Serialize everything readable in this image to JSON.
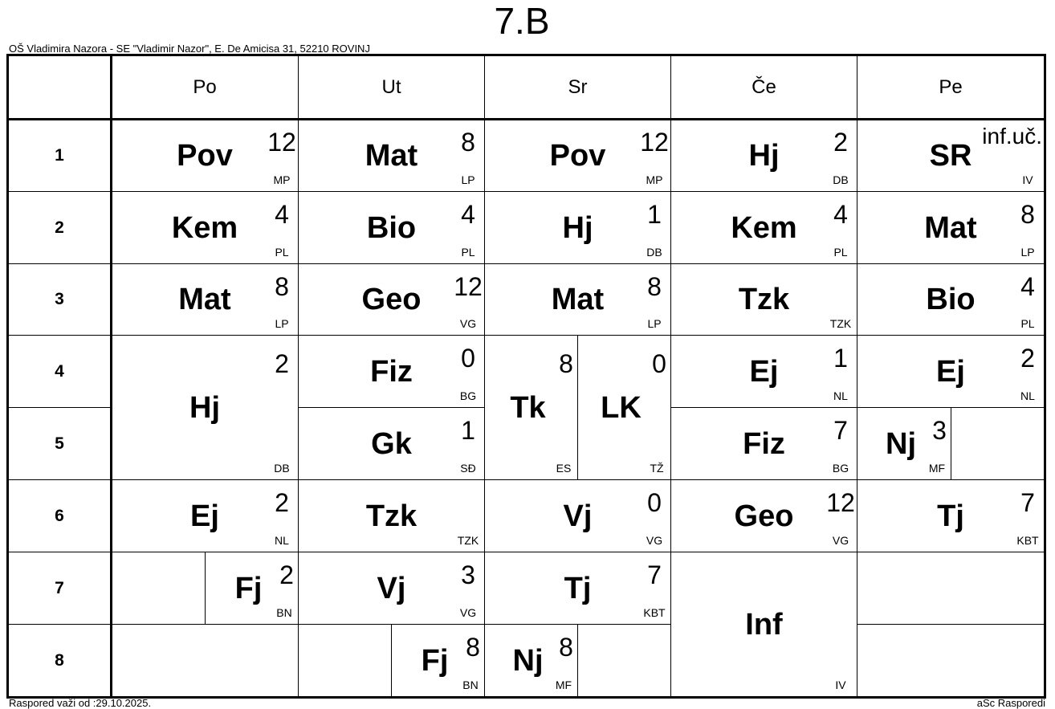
{
  "title": "7.B",
  "school": "OŠ Vladimira Nazora - SE \"Vladimir Nazor\", E. De Amicisa 31, 52210 ROVINJ",
  "valid_from": "Raspored važi od :29.10.2025.",
  "brand": "aSc Rasporedi",
  "days": [
    "Po",
    "Ut",
    "Sr",
    "Če",
    "Pe"
  ],
  "periods": [
    "1",
    "2",
    "3",
    "4",
    "5",
    "6",
    "7",
    "8"
  ],
  "cells": [
    {
      "day": "Po",
      "period": "1",
      "subject": "Pov",
      "room": "12",
      "teacher": "MP"
    },
    {
      "day": "Po",
      "period": "2",
      "subject": "Kem",
      "room": "4",
      "teacher": "PL"
    },
    {
      "day": "Po",
      "period": "3",
      "subject": "Mat",
      "room": "8",
      "teacher": "LP"
    },
    {
      "day": "Po",
      "period": "4-5",
      "subject": "Hj",
      "room": "2",
      "teacher": "DB"
    },
    {
      "day": "Po",
      "period": "6",
      "subject": "Ej",
      "room": "2",
      "teacher": "NL"
    },
    {
      "day": "Po",
      "period": "7",
      "subject": "",
      "room": "",
      "teacher": ""
    },
    {
      "day": "Po",
      "period": "7",
      "subject": "Fj",
      "room": "2",
      "teacher": "BN"
    },
    {
      "day": "Po",
      "period": "8",
      "subject": "",
      "room": "",
      "teacher": ""
    },
    {
      "day": "Ut",
      "period": "1",
      "subject": "Mat",
      "room": "8",
      "teacher": "LP"
    },
    {
      "day": "Ut",
      "period": "2",
      "subject": "Bio",
      "room": "4",
      "teacher": "PL"
    },
    {
      "day": "Ut",
      "period": "3",
      "subject": "Geo",
      "room": "12",
      "teacher": "VG"
    },
    {
      "day": "Ut",
      "period": "4",
      "subject": "Fiz",
      "room": "0",
      "teacher": "BG"
    },
    {
      "day": "Ut",
      "period": "5",
      "subject": "Gk",
      "room": "1",
      "teacher": "SĐ"
    },
    {
      "day": "Ut",
      "period": "6",
      "subject": "Tzk",
      "room": "",
      "teacher": "TZK"
    },
    {
      "day": "Ut",
      "period": "7",
      "subject": "Vj",
      "room": "3",
      "teacher": "VG"
    },
    {
      "day": "Ut",
      "period": "8",
      "subject": "",
      "room": "",
      "teacher": ""
    },
    {
      "day": "Ut",
      "period": "8",
      "subject": "Fj",
      "room": "8",
      "teacher": "BN"
    },
    {
      "day": "Sr",
      "period": "1",
      "subject": "Pov",
      "room": "12",
      "teacher": "MP"
    },
    {
      "day": "Sr",
      "period": "2",
      "subject": "Hj",
      "room": "1",
      "teacher": "DB"
    },
    {
      "day": "Sr",
      "period": "3",
      "subject": "Mat",
      "room": "8",
      "teacher": "LP"
    },
    {
      "day": "Sr",
      "period": "4-5",
      "subject": "Tk",
      "room": "8",
      "teacher": "ES"
    },
    {
      "day": "Sr",
      "period": "4-5",
      "subject": "LK",
      "room": "0",
      "teacher": "TŽ"
    },
    {
      "day": "Sr",
      "period": "6",
      "subject": "Vj",
      "room": "0",
      "teacher": "VG"
    },
    {
      "day": "Sr",
      "period": "7",
      "subject": "Tj",
      "room": "7",
      "teacher": "KBT"
    },
    {
      "day": "Sr",
      "period": "8",
      "subject": "Nj",
      "room": "8",
      "teacher": "MF"
    },
    {
      "day": "Sr",
      "period": "8",
      "subject": "",
      "room": "",
      "teacher": ""
    },
    {
      "day": "Če",
      "period": "1",
      "subject": "Hj",
      "room": "2",
      "teacher": "DB"
    },
    {
      "day": "Če",
      "period": "2",
      "subject": "Kem",
      "room": "4",
      "teacher": "PL"
    },
    {
      "day": "Če",
      "period": "3",
      "subject": "Tzk",
      "room": "",
      "teacher": "TZK"
    },
    {
      "day": "Če",
      "period": "4",
      "subject": "Ej",
      "room": "1",
      "teacher": "NL"
    },
    {
      "day": "Če",
      "period": "5",
      "subject": "Fiz",
      "room": "7",
      "teacher": "BG"
    },
    {
      "day": "Če",
      "period": "6",
      "subject": "Geo",
      "room": "12",
      "teacher": "VG"
    },
    {
      "day": "Če",
      "period": "7-8",
      "subject": "Inf",
      "room": "",
      "teacher": "IV"
    },
    {
      "day": "Pe",
      "period": "1",
      "subject": "SR",
      "room": "inf.uč.",
      "teacher": "IV"
    },
    {
      "day": "Pe",
      "period": "2",
      "subject": "Mat",
      "room": "8",
      "teacher": "LP"
    },
    {
      "day": "Pe",
      "period": "3",
      "subject": "Bio",
      "room": "4",
      "teacher": "PL"
    },
    {
      "day": "Pe",
      "period": "4",
      "subject": "Ej",
      "room": "2",
      "teacher": "NL"
    },
    {
      "day": "Pe",
      "period": "5",
      "subject": "Nj",
      "room": "3",
      "teacher": "MF"
    },
    {
      "day": "Pe",
      "period": "5",
      "subject": "",
      "room": "",
      "teacher": ""
    },
    {
      "day": "Pe",
      "period": "6",
      "subject": "Tj",
      "room": "7",
      "teacher": "KBT"
    },
    {
      "day": "Pe",
      "period": "7",
      "subject": "",
      "room": "",
      "teacher": ""
    },
    {
      "day": "Pe",
      "period": "8",
      "subject": "",
      "room": "",
      "teacher": ""
    }
  ]
}
